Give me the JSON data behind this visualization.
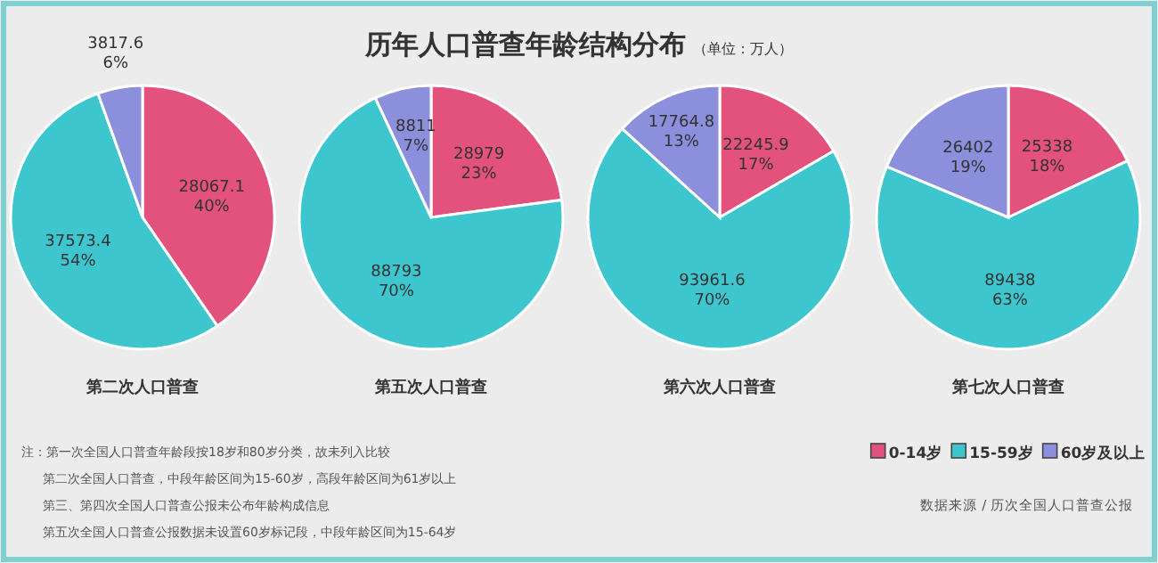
{
  "chart_data": [
    {
      "type": "other",
      "title": "历年人口普查年龄结构分布",
      "subtitle": "（单位：万人）",
      "annotations": [
        "注：第一次全国人口普查年龄段按18岁和80岁分类，故未列入比较",
        "第二次全国人口普查，中段年龄区间为15-60岁，高段年龄区间为61岁以上",
        "第三、第四次全国人口普查公报未公布年龄构成信息",
        "第五次全国人口普查公报数据未设置60岁标记段，中段年龄区间为15-64岁",
        "数据来源 / 历次全国人口普查公报"
      ]
    },
    {
      "type": "pie",
      "title": "第二次人口普查",
      "categories": [
        null,
        null,
        null
      ],
      "values": [
        28067.1,
        37573.4,
        3817.6
      ],
      "colors": [
        "#e2527c",
        "#3ec6cf",
        "#8b8fdc"
      ],
      "value_labels": [
        "28067.1 40%",
        "37573.4 54%",
        "3817.6 6%"
      ],
      "legend": false
    },
    {
      "type": "pie",
      "title": "第五次人口普查",
      "categories": [
        null,
        null,
        null
      ],
      "values": [
        28979,
        88793,
        8811
      ],
      "colors": [
        "#e2527c",
        "#3ec6cf",
        "#8b8fdc"
      ],
      "value_labels": [
        "28979 23%",
        "88793 70%",
        "8811 7%"
      ],
      "legend": false
    },
    {
      "type": "pie",
      "title": "第六次人口普查",
      "categories": [
        null,
        null,
        null
      ],
      "values": [
        22245.9,
        93961.6,
        17764.8
      ],
      "colors": [
        "#e2527c",
        "#3ec6cf",
        "#8b8fdc"
      ],
      "value_labels": [
        "22245.9 17%",
        "93961.6 70%",
        "17764.8 13%"
      ],
      "legend": false
    },
    {
      "type": "pie",
      "title": "第七次人口普查",
      "categories": [
        "0-14岁",
        "15-59岁",
        "60岁及以上"
      ],
      "values": [
        25338,
        89438,
        26402
      ],
      "colors": [
        "#e2527c",
        "#3ec6cf",
        "#8b8fdc"
      ],
      "value_labels": [
        "25338 18%",
        "89438 63%",
        "26402 19%"
      ],
      "legend": "bottom"
    }
  ]
}
